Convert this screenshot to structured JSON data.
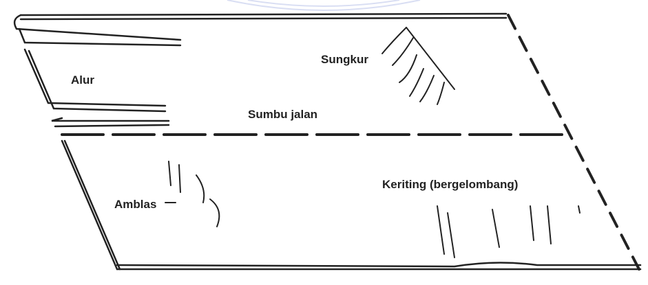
{
  "labels": [
    "Alur",
    "Sungkur",
    "Sumbu jalan",
    "Amblas",
    "Keriting (bergelombang)"
  ]
}
